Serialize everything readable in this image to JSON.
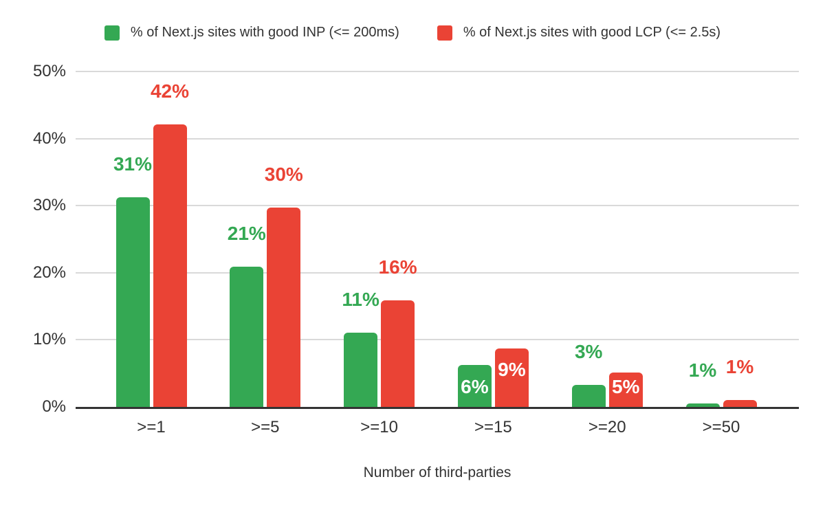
{
  "legend": [
    {
      "label": "% of Next.js sites with good INP (<= 200ms)",
      "color": "#34A853"
    },
    {
      "label": "% of Next.js sites with good LCP (<= 2.5s)",
      "color": "#EA4335"
    }
  ],
  "chart_data": {
    "type": "bar",
    "title": "",
    "xlabel": "Number of third-parties",
    "ylabel": "",
    "categories": [
      ">=1",
      ">=5",
      ">=10",
      ">=15",
      ">=20",
      ">=50"
    ],
    "y_ticks": [
      "0%",
      "10%",
      "20%",
      "30%",
      "40%",
      "50%"
    ],
    "ylim": [
      0,
      50
    ],
    "grid": true,
    "legend_position": "top",
    "grid_color": "#d9d9d9",
    "axis_color": "#333333",
    "tick_text_color": "#333333",
    "series": [
      {
        "name": "% of Next.js sites with good INP (<= 200ms)",
        "color": "#34A853",
        "values": [
          31,
          21,
          11,
          6,
          3,
          1
        ],
        "labels": [
          "31%",
          "21%",
          "11%",
          "6%",
          "3%",
          "1%"
        ],
        "bar_heights_pct": [
          31.3,
          20.9,
          11.1,
          6.2,
          3.3,
          0.5
        ],
        "label_placement": [
          "above",
          "above",
          "above",
          "inside-bottom",
          "above",
          "above"
        ],
        "label_style": [
          "series",
          "series",
          "series",
          "white",
          "series",
          "series"
        ]
      },
      {
        "name": "% of Next.js sites with good LCP (<= 2.5s)",
        "color": "#EA4335",
        "values": [
          42,
          30,
          16,
          9,
          5,
          1
        ],
        "labels": [
          "42%",
          "30%",
          "16%",
          "9%",
          "5%",
          "1%"
        ],
        "bar_heights_pct": [
          42.1,
          29.7,
          15.9,
          8.7,
          5.1,
          1.0
        ],
        "label_placement": [
          "above",
          "above",
          "above",
          "inside-top",
          "inside-bottom",
          "above"
        ],
        "label_style": [
          "series",
          "series",
          "series",
          "white",
          "white",
          "series"
        ]
      }
    ]
  }
}
